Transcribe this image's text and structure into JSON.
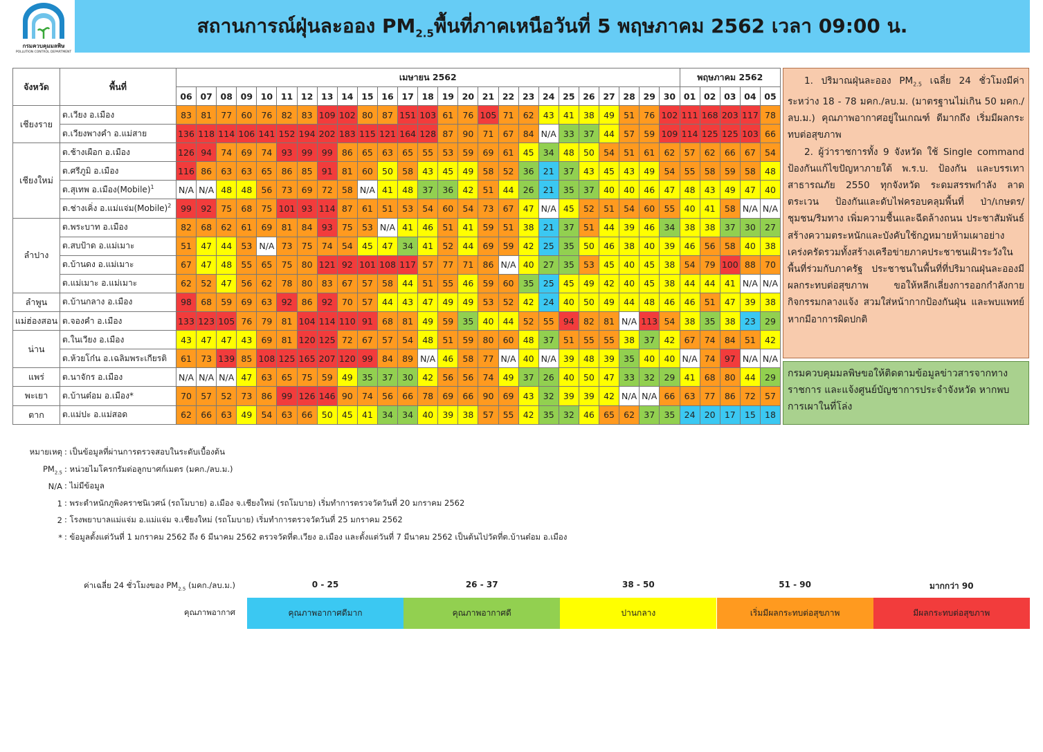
{
  "header": {
    "logo_th": "กรมควบคุมมลพิษ",
    "logo_en": "POLLUTION CONTROL DEPARTMENT",
    "title_a": "สถานการณ์ฝุ่นละออง PM",
    "title_sub": "2.5",
    "title_b": "พื้นที่ภาคเหนือวันที่ 5 พฤษภาคม 2562 เวลา 09:00 น."
  },
  "table": {
    "col_province": "จังหวัด",
    "col_area": "พื้นที่",
    "months": [
      {
        "name": "เมษายน 2562",
        "days": [
          "06",
          "07",
          "08",
          "09",
          "10",
          "11",
          "12",
          "13",
          "14",
          "15",
          "16",
          "17",
          "18",
          "19",
          "20",
          "21",
          "22",
          "23",
          "24",
          "25",
          "26",
          "27",
          "28",
          "29",
          "30"
        ]
      },
      {
        "name": "พฤษภาคม 2562",
        "days": [
          "01",
          "02",
          "03",
          "04",
          "05"
        ]
      }
    ],
    "provinces": [
      {
        "name": "เชียงราย",
        "stations": [
          {
            "name": "ต.เวียง อ.เมือง",
            "values": [
              83,
              81,
              77,
              60,
              76,
              82,
              83,
              109,
              102,
              80,
              87,
              151,
              103,
              61,
              76,
              105,
              71,
              62,
              43,
              41,
              38,
              49,
              51,
              76,
              102,
              111,
              168,
              203,
              117,
              78
            ]
          },
          {
            "name": "ต.เวียงพางคำ อ.แม่สาย",
            "values": [
              136,
              118,
              114,
              106,
              141,
              152,
              194,
              202,
              183,
              115,
              121,
              164,
              128,
              87,
              90,
              71,
              67,
              84,
              "N/A",
              33,
              37,
              44,
              57,
              59,
              109,
              114,
              125,
              125,
              103,
              66
            ]
          }
        ]
      },
      {
        "name": "เชียงใหม่",
        "stations": [
          {
            "name": "ต.ช้างเผือก อ.เมือง",
            "values": [
              126,
              94,
              74,
              69,
              74,
              93,
              99,
              99,
              86,
              65,
              63,
              65,
              55,
              53,
              59,
              69,
              61,
              45,
              34,
              48,
              50,
              54,
              51,
              61,
              62,
              57,
              62,
              66,
              67,
              54
            ]
          },
          {
            "name": "ต.ศรีภูมิ อ.เมือง",
            "values": [
              116,
              86,
              63,
              63,
              65,
              86,
              85,
              91,
              81,
              60,
              50,
              58,
              43,
              45,
              49,
              58,
              52,
              36,
              21,
              37,
              43,
              45,
              43,
              49,
              54,
              55,
              58,
              59,
              58,
              48
            ]
          },
          {
            "name": "ต.สุเทพ อ.เมือง(Mobile)",
            "sup": "1",
            "values": [
              "N/A",
              "N/A",
              48,
              48,
              56,
              73,
              69,
              72,
              58,
              "N/A",
              41,
              48,
              37,
              36,
              42,
              51,
              44,
              26,
              21,
              35,
              37,
              40,
              40,
              46,
              47,
              48,
              43,
              49,
              47,
              40
            ]
          },
          {
            "name": "ต.ช่างเคิ่ง อ.แม่แจ่ม(Mobile)",
            "sup": "2",
            "values": [
              99,
              92,
              75,
              68,
              75,
              101,
              93,
              114,
              87,
              61,
              51,
              53,
              54,
              60,
              54,
              73,
              67,
              47,
              "N/A",
              45,
              52,
              51,
              54,
              60,
              55,
              40,
              41,
              58,
              "N/A",
              "N/A"
            ]
          }
        ]
      },
      {
        "name": "ลำปาง",
        "stations": [
          {
            "name": "ต.พระบาท อ.เมือง",
            "values": [
              82,
              68,
              62,
              61,
              69,
              81,
              84,
              93,
              75,
              53,
              "N/A",
              41,
              46,
              51,
              41,
              59,
              51,
              38,
              21,
              37,
              51,
              44,
              39,
              46,
              34,
              38,
              38,
              37,
              30,
              27
            ]
          },
          {
            "name": "ต.สบป้าด อ.แม่เมาะ",
            "values": [
              51,
              47,
              44,
              53,
              "N/A",
              73,
              75,
              74,
              54,
              45,
              47,
              34,
              41,
              52,
              44,
              69,
              59,
              42,
              25,
              35,
              50,
              46,
              38,
              40,
              39,
              46,
              56,
              58,
              40,
              38
            ]
          },
          {
            "name": "ต.บ้านดง อ.แม่เมาะ",
            "values": [
              67,
              47,
              48,
              55,
              65,
              75,
              80,
              121,
              92,
              101,
              108,
              117,
              57,
              77,
              71,
              86,
              "N/A",
              40,
              27,
              35,
              53,
              45,
              40,
              45,
              38,
              54,
              79,
              100,
              88,
              70
            ]
          },
          {
            "name": "ต.แม่เมาะ อ.แม่เมาะ",
            "values": [
              62,
              52,
              47,
              56,
              62,
              78,
              80,
              83,
              67,
              57,
              58,
              44,
              51,
              55,
              46,
              59,
              60,
              35,
              25,
              45,
              49,
              42,
              40,
              45,
              38,
              44,
              44,
              41,
              "N/A",
              "N/A"
            ]
          }
        ]
      },
      {
        "name": "ลำพูน",
        "stations": [
          {
            "name": "ต.บ้านกลาง อ.เมือง",
            "values": [
              98,
              68,
              59,
              69,
              63,
              92,
              86,
              92,
              70,
              57,
              44,
              43,
              47,
              49,
              49,
              53,
              52,
              42,
              24,
              40,
              50,
              49,
              44,
              48,
              46,
              46,
              51,
              47,
              39,
              38
            ]
          }
        ]
      },
      {
        "name": "แม่ฮ่องสอน",
        "stations": [
          {
            "name": "ต.จองคำ อ.เมือง",
            "values": [
              133,
              123,
              105,
              76,
              79,
              81,
              104,
              114,
              110,
              91,
              68,
              81,
              49,
              59,
              35,
              40,
              44,
              52,
              55,
              94,
              82,
              81,
              "N/A",
              113,
              54,
              38,
              35,
              38,
              23,
              29
            ]
          }
        ]
      },
      {
        "name": "น่าน",
        "stations": [
          {
            "name": "ต.ในเวียง อ.เมือง",
            "values": [
              43,
              47,
              47,
              43,
              69,
              81,
              120,
              125,
              72,
              67,
              57,
              54,
              48,
              51,
              59,
              80,
              60,
              48,
              37,
              51,
              55,
              55,
              38,
              37,
              42,
              67,
              74,
              84,
              51,
              42
            ]
          },
          {
            "name": "ต.ห้วยโก๋น อ.เฉลิมพระเกียรติ",
            "values": [
              61,
              73,
              139,
              85,
              108,
              125,
              165,
              207,
              120,
              99,
              84,
              89,
              "N/A",
              46,
              58,
              77,
              "N/A",
              40,
              "N/A",
              39,
              48,
              39,
              35,
              40,
              40,
              "N/A",
              74,
              97,
              "N/A",
              "N/A"
            ]
          }
        ]
      },
      {
        "name": "แพร่",
        "stations": [
          {
            "name": "ต.นาจักร อ.เมือง",
            "values": [
              "N/A",
              "N/A",
              "N/A",
              47,
              63,
              65,
              75,
              59,
              49,
              35,
              37,
              30,
              42,
              56,
              56,
              74,
              49,
              37,
              26,
              40,
              50,
              47,
              33,
              32,
              29,
              41,
              68,
              80,
              44,
              29
            ]
          }
        ]
      },
      {
        "name": "พะเยา",
        "stations": [
          {
            "name": "ต.บ้านต๋อม อ.เมือง*",
            "values": [
              70,
              57,
              52,
              73,
              86,
              99,
              126,
              146,
              90,
              74,
              56,
              66,
              78,
              69,
              66,
              90,
              69,
              43,
              32,
              39,
              39,
              42,
              "N/A",
              "N/A",
              66,
              63,
              77,
              86,
              72,
              57
            ]
          }
        ]
      },
      {
        "name": "ตาก",
        "stations": [
          {
            "name": "ต.แม่ปะ อ.แม่สอด",
            "values": [
              62,
              66,
              63,
              49,
              54,
              63,
              66,
              50,
              45,
              41,
              34,
              34,
              40,
              39,
              38,
              57,
              55,
              42,
              35,
              32,
              46,
              65,
              62,
              37,
              35,
              24,
              20,
              17,
              15,
              18
            ]
          }
        ]
      }
    ]
  },
  "summary": {
    "p1_a": "1. ปริมาณฝุ่นละออง PM",
    "p1_sub": "2.5",
    "p1_b": " เฉลี่ย 24 ชั่วโมงมีค่าระหว่าง 18 - 78 มคก./ลบ.ม. (มาตรฐานไม่เกิน 50 มคก./ลบ.ม.) คุณภาพอากาศอยู่ในเกณฑ์ ดีมากถึง เริ่มมีผลกระทบต่อสุขภาพ",
    "p2": "2. ผู้ว่าราชการทั้ง 9 จังหวัด ใช้ Single command ป้องกันแก้ไขปัญหาภายใต้ พ.ร.บ. ป้องกัน และบรรเทาสาธารณภัย 2550 ทุกจังหวัด ระดมสรรพกำลัง ลาดตระเวน ป้องกันและดับไฟครอบคลุมพื้นที่ ป่า/เกษตร/ชุมชน/ริมทาง เพิ่มความชื้นและฉีดล้างถนน ประชาสัมพันธ์สร้างความตระหนักและบังคับใช้กฎหมายห้ามเผาอย่างเคร่งครัดรวมทั้งสร้างเครือข่ายภาคประชาชนเฝ้าระวังในพื้นที่ร่วมกับภาครัฐ ประชาชนในพื้นที่ที่ปริมาณฝุ่นละอองมีผลกระทบต่อสุขภาพ ขอให้หลีกเลี่ยงการออกกำลังกาย กิจกรรมกลางแจ้ง สวมใส่หน้ากากป้องกันฝุ่น และพบแพทย์หากมีอาการผิดปกติ",
    "advice": "กรมควบคุมมลพิษขอให้ติดตามข้อมูลข่าวสารจากทางราชการ และแจ้งศูนย์บัญชาการประจำจังหวัด หากพบการเผาในที่โล่ง"
  },
  "notes": [
    {
      "key": "หมายเหตุ",
      "text": ": เป็นข้อมูลที่ผ่านการตรวจสอบในระดับเบื้องต้น"
    },
    {
      "key": "PM",
      "key_sub": "2.5",
      "text": ": หน่วยไมโครกรัมต่อลูกบาศก์เมตร (มคก./ลบ.ม.)"
    },
    {
      "key": "N/A",
      "text": ": ไม่มีข้อมูล"
    },
    {
      "key": "1",
      "text": ": พระตำหนักภูพิงคราชนิเวศน์ (รถโมบาย) อ.เมือง จ.เชียงใหม่ (รถโมบาย)  เริ่มทำการตรวจวัดวันที่ 20 มกราคม 2562"
    },
    {
      "key": "2",
      "text": ": โรงพยาบาลแม่แจ่ม อ.แม่แจ่ม จ.เชียงใหม่ (รถโมบาย)  เริ่มทำการตรวจวัดวันที่ 25 มกราคม 2562"
    },
    {
      "key": "*",
      "text": ": ข้อมูลตั้งแต่วันที่ 1 มกราคม 2562 ถึง 6 มีนาคม 2562 ตรวจวัดที่ต.เวียง อ.เมือง และตั้งแต่วันที่ 7 มีนาคม 2562 เป็นต้นไปวัดที่ต.บ้านต๋อม อ.เมือง"
    }
  ],
  "legend": {
    "avg_a": "ค่าเฉลี่ย 24 ชั่วโมงของ PM",
    "avg_sub": "2.5",
    "avg_b": " (มคก./ลบ.ม.)",
    "quality": "คุณภาพอากาศ",
    "items": [
      {
        "range": "0 - 25",
        "label": "คุณภาพอากาศดีมาก",
        "color": "#3bc8f2"
      },
      {
        "range": "26 - 37",
        "label": "คุณภาพอากาศดี",
        "color": "#92d050"
      },
      {
        "range": "38 - 50",
        "label": "ปานกลาง",
        "color": "#ffff00"
      },
      {
        "range": "51 - 90",
        "label": "เริ่มมีผลกระทบต่อสุขภาพ",
        "color": "#ff9a1f"
      },
      {
        "range": "มากกว่า 90",
        "label": "มีผลกระทบต่อสุขภาพ",
        "color": "#f23c3c"
      }
    ]
  }
}
